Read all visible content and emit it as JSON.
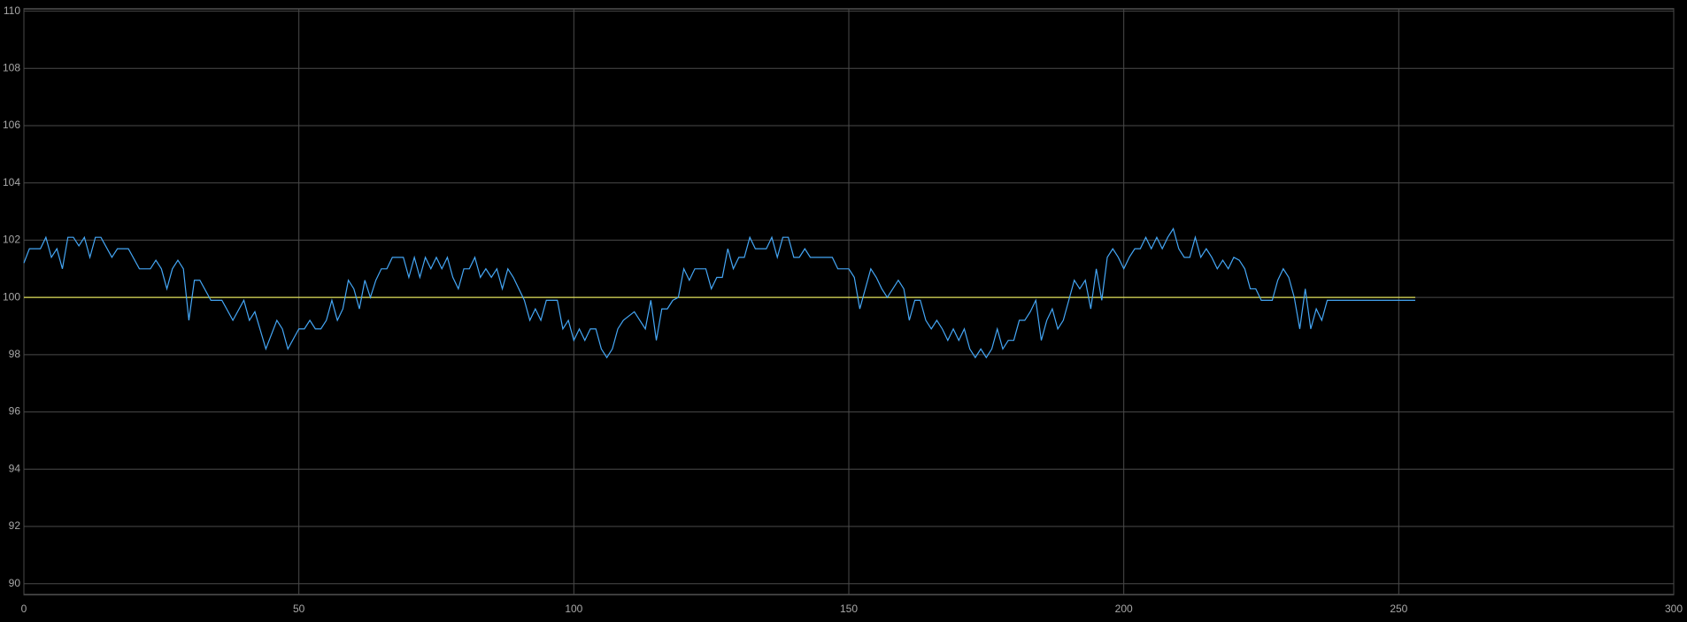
{
  "chart_data": {
    "type": "line",
    "xlim": [
      0,
      300
    ],
    "xticks": [
      0,
      50,
      100,
      150,
      200,
      250,
      300
    ],
    "ylim": [
      89.62,
      110.08
    ],
    "yticks": [
      90,
      92,
      94,
      96,
      98,
      100,
      102,
      104,
      106,
      108,
      110
    ],
    "grid": true,
    "series": [
      {
        "color": "#44a6f5",
        "x": [
          0,
          1,
          3,
          4,
          5,
          6,
          7,
          8,
          9,
          10,
          11,
          12,
          13,
          14,
          16,
          17,
          19,
          21,
          23,
          24,
          25,
          26,
          27,
          28,
          29,
          30,
          31,
          32,
          34,
          36,
          38,
          40,
          41,
          42,
          44,
          46,
          47,
          48,
          50,
          51,
          52,
          53,
          54,
          55,
          56,
          57,
          58,
          59,
          60,
          61,
          62,
          63,
          64,
          65,
          66,
          67,
          69,
          70,
          71,
          72,
          73,
          74,
          75,
          76,
          77,
          78,
          79,
          80,
          81,
          82,
          83,
          84,
          85,
          86,
          87,
          88,
          89,
          90,
          91,
          92,
          93,
          94,
          95,
          97,
          98,
          99,
          100,
          101,
          102,
          103,
          104,
          105,
          106,
          107,
          108,
          109,
          111,
          112,
          113,
          114,
          115,
          116,
          117,
          118,
          119,
          120,
          121,
          122,
          124,
          125,
          126,
          127,
          128,
          129,
          130,
          131,
          132,
          133,
          135,
          136,
          137,
          138,
          139,
          140,
          141,
          142,
          143,
          147,
          148,
          150,
          151,
          152,
          153,
          154,
          155,
          156,
          157,
          158,
          159,
          160,
          161,
          162,
          163,
          164,
          165,
          166,
          167,
          168,
          169,
          170,
          171,
          172,
          173,
          174,
          175,
          176,
          177,
          178,
          179,
          180,
          181,
          182,
          183,
          184,
          185,
          186,
          187,
          188,
          189,
          190,
          191,
          192,
          193,
          194,
          195,
          196,
          197,
          198,
          199,
          200,
          201,
          202,
          203,
          204,
          205,
          206,
          207,
          208,
          209,
          210,
          211,
          212,
          213,
          214,
          215,
          216,
          217,
          218,
          219,
          220,
          221,
          222,
          223,
          224,
          225,
          227,
          228,
          229,
          230,
          231,
          232,
          233,
          234,
          235,
          236,
          237,
          253
        ],
        "values": [
          101.2,
          101.7,
          101.7,
          102.1,
          101.4,
          101.7,
          101.0,
          102.1,
          102.1,
          101.8,
          102.1,
          101.4,
          102.1,
          102.1,
          101.4,
          101.7,
          101.7,
          101.0,
          101.0,
          101.3,
          101.0,
          100.3,
          101.0,
          101.3,
          101.0,
          99.2,
          100.6,
          100.6,
          99.9,
          99.9,
          99.2,
          99.9,
          99.2,
          99.5,
          98.2,
          99.2,
          98.9,
          98.2,
          98.9,
          98.9,
          99.2,
          98.9,
          98.9,
          99.2,
          99.9,
          99.2,
          99.6,
          100.6,
          100.3,
          99.6,
          100.6,
          100.0,
          100.6,
          101.0,
          101.0,
          101.4,
          101.4,
          100.7,
          101.4,
          100.7,
          101.4,
          101.0,
          101.4,
          101.0,
          101.4,
          100.7,
          100.3,
          101.0,
          101.0,
          101.4,
          100.7,
          101.0,
          100.7,
          101.0,
          100.3,
          101.0,
          100.7,
          100.3,
          99.9,
          99.2,
          99.6,
          99.2,
          99.9,
          99.9,
          98.9,
          99.2,
          98.5,
          98.9,
          98.5,
          98.9,
          98.9,
          98.2,
          97.9,
          98.2,
          98.9,
          99.2,
          99.5,
          99.2,
          98.9,
          99.9,
          98.5,
          99.6,
          99.6,
          99.9,
          100.0,
          101.0,
          100.6,
          101.0,
          101.0,
          100.3,
          100.7,
          100.7,
          101.7,
          101.0,
          101.4,
          101.4,
          102.1,
          101.7,
          101.7,
          102.1,
          101.4,
          102.1,
          102.1,
          101.4,
          101.4,
          101.7,
          101.4,
          101.4,
          101.0,
          101.0,
          100.7,
          99.6,
          100.3,
          101.0,
          100.7,
          100.3,
          100.0,
          100.3,
          100.6,
          100.3,
          99.2,
          99.9,
          99.9,
          99.2,
          98.9,
          99.2,
          98.9,
          98.5,
          98.9,
          98.5,
          98.9,
          98.2,
          97.9,
          98.2,
          97.9,
          98.2,
          98.9,
          98.2,
          98.5,
          98.5,
          99.2,
          99.2,
          99.5,
          99.9,
          98.5,
          99.2,
          99.6,
          98.9,
          99.2,
          99.9,
          100.6,
          100.3,
          100.6,
          99.6,
          101.0,
          99.9,
          101.4,
          101.7,
          101.4,
          101.0,
          101.4,
          101.7,
          101.7,
          102.1,
          101.7,
          102.1,
          101.7,
          102.1,
          102.4,
          101.7,
          101.4,
          101.4,
          102.1,
          101.4,
          101.7,
          101.4,
          101.0,
          101.3,
          101.0,
          101.4,
          101.3,
          101.0,
          100.3,
          100.3,
          99.9,
          99.9,
          100.6,
          101.0,
          100.7,
          100.0,
          98.9,
          100.3,
          98.9,
          99.6,
          99.2,
          99.9,
          99.9
        ]
      },
      {
        "color": "#e0e05a",
        "x": [
          0,
          253
        ],
        "values": [
          100,
          100
        ]
      }
    ]
  }
}
